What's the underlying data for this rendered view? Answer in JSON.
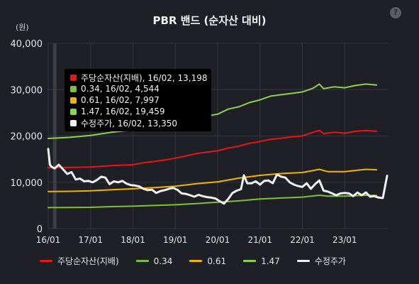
{
  "title": "PBR 밴드 (순자산 대비)",
  "help_label": "?",
  "unit_label": "(원)",
  "colors": {
    "background": "#1e2025",
    "grid": "#33363c",
    "red": "#e8141b",
    "green": "#7dc03a",
    "orange": "#f0b400",
    "green_light": "#8ed04a",
    "white": "#f0f0f0",
    "cursor": "#3a3d43"
  },
  "tooltip": {
    "rows": [
      {
        "text": "주당순자산(지배), 16/02, 13,198",
        "color": "#e8141b"
      },
      {
        "text": "0.34, 16/02, 4,544",
        "color": "#7dc03a"
      },
      {
        "text": "0.61, 16/02, 7,997",
        "color": "#f0b400"
      },
      {
        "text": "1.47, 16/02, 19,459",
        "color": "#8ed04a"
      },
      {
        "text": "수정주가, 16/02, 13,350",
        "color": "#f0f0f0"
      }
    ]
  },
  "legend": [
    {
      "label": "주당순자산(지배)",
      "color": "#e8141b"
    },
    {
      "label": "0.34",
      "color": "#7dc03a"
    },
    {
      "label": "0.61",
      "color": "#f0b400"
    },
    {
      "label": "1.47",
      "color": "#8ed04a"
    },
    {
      "label": "수정주가",
      "color": "#f0f0f0"
    }
  ],
  "chart_data": {
    "type": "line",
    "title": "PBR 밴드 (순자산 대비)",
    "ylabel": "(원)",
    "ylim": [
      0,
      40000
    ],
    "yticks": [
      0,
      10000,
      20000,
      30000,
      40000
    ],
    "ytick_labels": [
      "0",
      "10,000",
      "20,000",
      "30,000",
      "40,000"
    ],
    "xlim": [
      2016.0,
      2024.0
    ],
    "xticks": [
      2016.0,
      2017.0,
      2018.0,
      2019.0,
      2020.0,
      2021.0,
      2022.0,
      2023.0
    ],
    "xtick_labels": [
      "16/01",
      "17/01",
      "18/01",
      "19/01",
      "20/01",
      "21/01",
      "22/01",
      "23/01"
    ],
    "grid": true,
    "highlight_x": 2016.08,
    "legend_position": "bottom",
    "series": [
      {
        "name": "주당순자산(지배)",
        "color": "#e8141b",
        "x": [
          2016.0,
          2016.5,
          2017.0,
          2017.5,
          2018.0,
          2018.25,
          2018.5,
          2018.75,
          2019.0,
          2019.25,
          2019.5,
          2019.75,
          2020.0,
          2020.25,
          2020.5,
          2020.75,
          2021.0,
          2021.25,
          2021.5,
          2021.75,
          2022.0,
          2022.25,
          2022.4,
          2022.5,
          2022.75,
          2023.0,
          2023.25,
          2023.5,
          2023.75
        ],
        "y": [
          13198,
          13198,
          13300,
          13600,
          13800,
          14200,
          14500,
          14800,
          15200,
          15700,
          16200,
          16500,
          16800,
          17400,
          17800,
          18400,
          18800,
          19300,
          19500,
          19800,
          20000,
          20800,
          21200,
          20500,
          20800,
          20600,
          21000,
          21200,
          21000
        ]
      },
      {
        "name": "0.34",
        "color": "#7dc03a",
        "x": [
          2016.0,
          2016.5,
          2017.0,
          2017.5,
          2018.0,
          2018.5,
          2019.0,
          2019.5,
          2020.0,
          2020.5,
          2021.0,
          2021.5,
          2022.0,
          2022.4,
          2022.6,
          2023.0,
          2023.5,
          2023.75
        ],
        "y": [
          4544,
          4560,
          4600,
          4750,
          4850,
          5000,
          5150,
          5400,
          5700,
          6000,
          6400,
          6600,
          6800,
          7200,
          7000,
          7000,
          7200,
          7150
        ]
      },
      {
        "name": "0.61",
        "color": "#f0b400",
        "x": [
          2016.0,
          2016.5,
          2017.0,
          2017.5,
          2018.0,
          2018.5,
          2019.0,
          2019.5,
          2020.0,
          2020.5,
          2021.0,
          2021.5,
          2022.0,
          2022.4,
          2022.6,
          2023.0,
          2023.5,
          2023.75
        ],
        "y": [
          7997,
          8050,
          8150,
          8400,
          8600,
          8850,
          9150,
          9700,
          10100,
          10900,
          11500,
          11900,
          12100,
          12800,
          12300,
          12300,
          12800,
          12700
        ]
      },
      {
        "name": "1.47",
        "color": "#8ed04a",
        "x": [
          2016.0,
          2016.5,
          2017.0,
          2017.5,
          2018.0,
          2018.25,
          2018.5,
          2018.75,
          2019.0,
          2019.25,
          2019.5,
          2019.75,
          2020.0,
          2020.25,
          2020.5,
          2020.75,
          2021.0,
          2021.25,
          2021.5,
          2021.75,
          2022.0,
          2022.25,
          2022.4,
          2022.5,
          2022.75,
          2023.0,
          2023.25,
          2023.5,
          2023.75
        ],
        "y": [
          19459,
          19700,
          20100,
          20800,
          21300,
          21700,
          22000,
          22300,
          22800,
          23300,
          23900,
          24300,
          24700,
          25800,
          26300,
          27200,
          27800,
          28600,
          28900,
          29200,
          29500,
          30300,
          31200,
          30200,
          30600,
          30400,
          30900,
          31200,
          31000
        ]
      },
      {
        "name": "수정주가",
        "color": "#f0f0f0",
        "x": [
          2016.0,
          2016.04,
          2016.08,
          2016.15,
          2016.25,
          2016.35,
          2016.45,
          2016.55,
          2016.65,
          2016.75,
          2016.85,
          2016.95,
          2017.05,
          2017.15,
          2017.25,
          2017.35,
          2017.45,
          2017.55,
          2017.65,
          2017.75,
          2017.85,
          2017.95,
          2018.05,
          2018.15,
          2018.25,
          2018.35,
          2018.45,
          2018.55,
          2018.65,
          2018.75,
          2018.85,
          2018.95,
          2019.05,
          2019.15,
          2019.25,
          2019.35,
          2019.45,
          2019.55,
          2019.65,
          2019.75,
          2019.85,
          2019.95,
          2020.05,
          2020.15,
          2020.25,
          2020.35,
          2020.45,
          2020.55,
          2020.62,
          2020.7,
          2020.8,
          2020.9,
          2021.0,
          2021.1,
          2021.2,
          2021.3,
          2021.4,
          2021.5,
          2021.6,
          2021.7,
          2021.8,
          2021.9,
          2022.0,
          2022.1,
          2022.2,
          2022.3,
          2022.4,
          2022.5,
          2022.6,
          2022.7,
          2022.8,
          2022.9,
          2023.0,
          2023.1,
          2023.2,
          2023.3,
          2023.4,
          2023.5,
          2023.6,
          2023.7,
          2023.8,
          2023.9,
          2024.0
        ],
        "y": [
          17200,
          13800,
          13350,
          13000,
          13800,
          12800,
          11800,
          12200,
          10600,
          10800,
          10200,
          10300,
          10000,
          10500,
          11200,
          11000,
          9600,
          10200,
          10000,
          10300,
          9700,
          9400,
          9300,
          9100,
          8600,
          8300,
          8400,
          7700,
          8100,
          8300,
          8600,
          8800,
          8400,
          7600,
          7500,
          7200,
          6900,
          7300,
          7000,
          6800,
          6700,
          6500,
          5900,
          5400,
          6400,
          7700,
          8200,
          8500,
          11500,
          9800,
          9800,
          10200,
          9500,
          10300,
          10400,
          9800,
          11700,
          11200,
          11000,
          10000,
          9500,
          9200,
          9000,
          9800,
          8600,
          9600,
          10400,
          8200,
          8000,
          7600,
          7200,
          7600,
          7700,
          7600,
          7000,
          7800,
          7200,
          7800,
          6900,
          7000,
          6700,
          6600,
          11400
        ]
      }
    ]
  }
}
